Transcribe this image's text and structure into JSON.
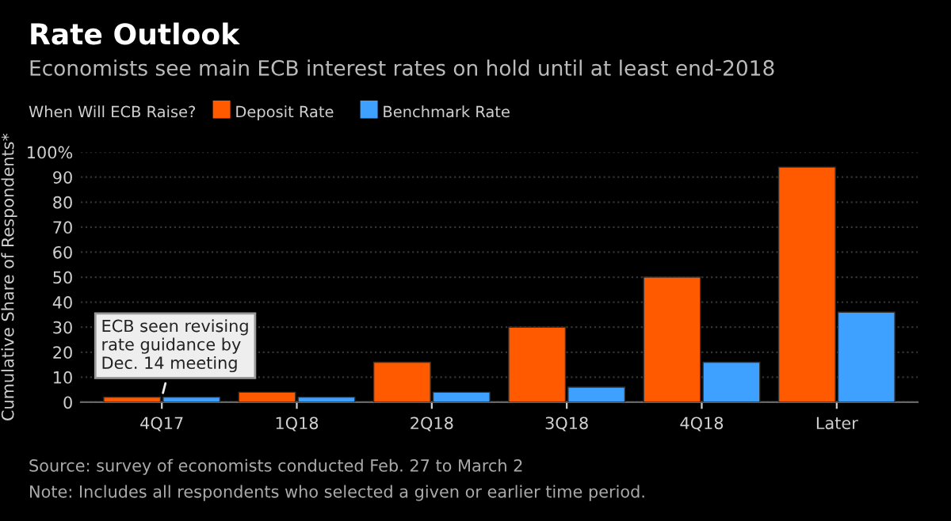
{
  "chart_data": {
    "type": "bar",
    "title": "Rate Outlook",
    "subtitle": "Economists see main ECB interest rates on hold until at least end-2018",
    "legend_title": "When Will ECB Raise?",
    "ylabel": "Cumulative Share of Respondents*",
    "categories": [
      "4Q17",
      "1Q18",
      "2Q18",
      "3Q18",
      "4Q18",
      "Later"
    ],
    "series": [
      {
        "name": "Deposit Rate",
        "color": "#ff5a00",
        "values": [
          2,
          4,
          16,
          30,
          50,
          94
        ]
      },
      {
        "name": "Benchmark Rate",
        "color": "#3ea1ff",
        "values": [
          2,
          2,
          4,
          6,
          16,
          36
        ]
      }
    ],
    "ylim": [
      0,
      100
    ],
    "yticks": [
      0,
      10,
      20,
      30,
      40,
      50,
      60,
      70,
      80,
      90,
      {
        "value": 100,
        "label": "100%"
      }
    ],
    "grid": "y",
    "legend": "top left",
    "annotations": [
      {
        "text": "ECB seen revising\nrate guidance by\nDec. 14 meeting",
        "x": "4Q17",
        "y": 2
      },
      "Source: survey of economists conducted Feb. 27 to March 2",
      "Note: Includes all respondents who selected a given or earlier time period."
    ]
  }
}
